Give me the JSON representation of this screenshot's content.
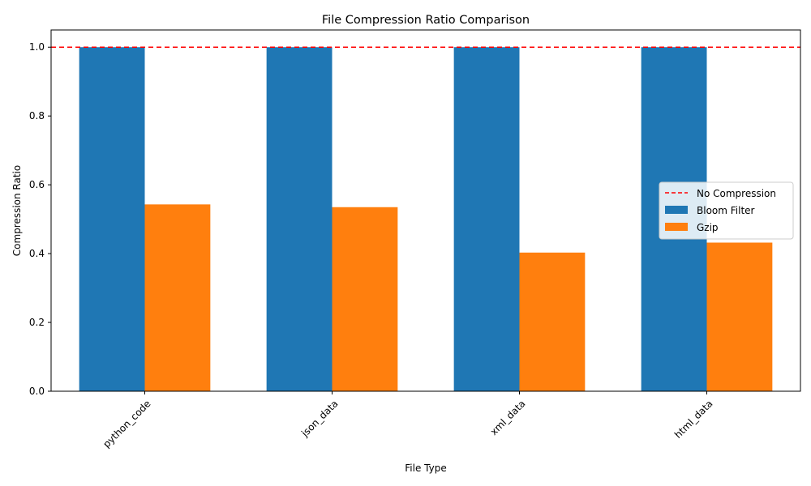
{
  "chart_data": {
    "type": "bar",
    "title": "File Compression Ratio Comparison",
    "xlabel": "File Type",
    "ylabel": "Compression Ratio",
    "categories": [
      "python_code",
      "json_data",
      "xml_data",
      "html_data"
    ],
    "series": [
      {
        "name": "Bloom Filter",
        "color": "#1f77b4",
        "values": [
          1.0,
          1.0,
          1.0,
          1.0
        ]
      },
      {
        "name": "Gzip",
        "color": "#ff7f0e",
        "values": [
          0.543,
          0.535,
          0.403,
          0.432
        ]
      }
    ],
    "reference_line": {
      "name": "No Compression",
      "value": 1.0,
      "color": "#ff0000",
      "style": "dashed"
    },
    "ylim": [
      0,
      1.05
    ],
    "yticks": [
      "0.0",
      "0.2",
      "0.4",
      "0.6",
      "0.8",
      "1.0"
    ],
    "legend_position": "center-right",
    "grid": false
  }
}
